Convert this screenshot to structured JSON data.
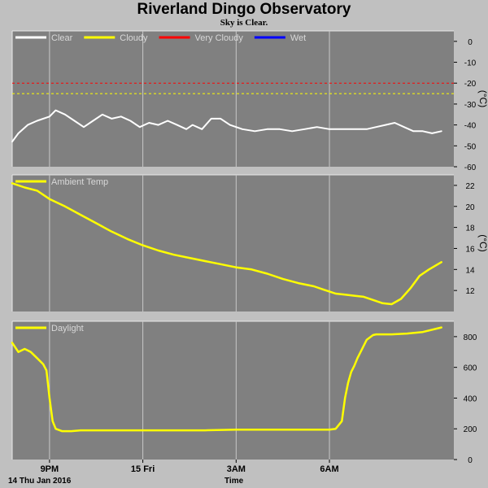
{
  "header": {
    "title": "Riverland Dingo Observatory",
    "subtitle": "Sky is Clear."
  },
  "footer": {
    "date": "14 Thu Jan 2016",
    "time_label": "Time"
  },
  "colors": {
    "background": "#c0c0c0",
    "plot_bg": "#808080",
    "grid": "#c8c8c8",
    "clear": "#ffffff",
    "cloudy": "#ffff00",
    "very_cloudy": "#ff0000",
    "wet": "#0000ff",
    "ambient": "#ffff00",
    "daylight": "#ffff00"
  },
  "chart_data": [
    {
      "type": "line",
      "name": "sky-temperature",
      "legend": [
        {
          "label": "Clear",
          "color": "#ffffff"
        },
        {
          "label": "Cloudy",
          "color": "#ffff00"
        },
        {
          "label": "Very Cloudy",
          "color": "#ff0000"
        },
        {
          "label": "Wet",
          "color": "#0000ff"
        }
      ],
      "ylim": [
        -60,
        5
      ],
      "yticks": [
        0,
        -10,
        -20,
        -30,
        -40,
        -50,
        -60
      ],
      "unit": "(°C)",
      "thresholds": [
        {
          "value": -20,
          "color": "#ff0000"
        },
        {
          "value": -25,
          "color": "#ffff00"
        }
      ],
      "series": [
        {
          "color": "#ffffff",
          "x": [
            19.8,
            20.0,
            20.3,
            20.6,
            21.0,
            21.2,
            21.5,
            21.8,
            22.1,
            22.4,
            22.7,
            23.0,
            23.3,
            23.6,
            23.9,
            24.2,
            24.5,
            24.8,
            25.1,
            25.4,
            25.6,
            25.9,
            26.2,
            26.5,
            26.8,
            27.2,
            27.6,
            28.0,
            28.4,
            28.8,
            29.2,
            29.6,
            30.0,
            30.3,
            30.6,
            30.9,
            31.2,
            31.5,
            31.8,
            32.1,
            32.4,
            32.7,
            33.0,
            33.3,
            33.6
          ],
          "y": [
            -48,
            -44,
            -40,
            -38,
            -36,
            -33,
            -35,
            -38,
            -41,
            -38,
            -35,
            -37,
            -36,
            -38,
            -41,
            -39,
            -40,
            -38,
            -40,
            -42,
            -40,
            -42,
            -37,
            -37,
            -40,
            -42,
            -43,
            -42,
            -42,
            -43,
            -42,
            -41,
            -42,
            -42,
            -42,
            -42,
            -42,
            -41,
            -40,
            -39,
            -41,
            -43,
            -43,
            -44,
            -43
          ]
        }
      ]
    },
    {
      "type": "line",
      "name": "ambient-temperature",
      "legend": [
        {
          "label": "Ambient Temp",
          "color": "#ffff00"
        }
      ],
      "ylim": [
        10,
        23
      ],
      "yticks": [
        22,
        20,
        18,
        16,
        14,
        12
      ],
      "unit": "(°C)",
      "series": [
        {
          "color": "#ffff00",
          "x": [
            19.8,
            20.2,
            20.6,
            21.0,
            21.5,
            22.0,
            22.5,
            23.0,
            23.5,
            24.0,
            24.5,
            25.0,
            25.5,
            26.0,
            26.5,
            27.0,
            27.5,
            28.0,
            28.5,
            29.0,
            29.5,
            29.8,
            30.0,
            30.2,
            30.5,
            30.8,
            31.1,
            31.4,
            31.7,
            32.0,
            32.3,
            32.6,
            32.9,
            33.2,
            33.6
          ],
          "y": [
            22.2,
            21.8,
            21.5,
            20.7,
            20.0,
            19.2,
            18.4,
            17.6,
            16.9,
            16.3,
            15.8,
            15.4,
            15.1,
            14.8,
            14.5,
            14.2,
            14.0,
            13.6,
            13.1,
            12.7,
            12.4,
            12.1,
            11.9,
            11.7,
            11.6,
            11.5,
            11.4,
            11.1,
            10.8,
            10.7,
            11.2,
            12.2,
            13.4,
            14.0,
            14.7
          ]
        }
      ]
    },
    {
      "type": "line",
      "name": "daylight",
      "legend": [
        {
          "label": "Daylight",
          "color": "#ffff00"
        }
      ],
      "ylim": [
        0,
        900
      ],
      "yticks": [
        800,
        600,
        400,
        200,
        0
      ],
      "unit": "",
      "series": [
        {
          "color": "#ffff00",
          "x": [
            19.8,
            20.0,
            20.2,
            20.4,
            20.6,
            20.8,
            20.9,
            21.0,
            21.1,
            21.2,
            21.4,
            21.7,
            22.0,
            23.0,
            24.0,
            25.0,
            26.0,
            27.0,
            28.0,
            29.0,
            29.5,
            30.0,
            30.2,
            30.4,
            30.5,
            30.6,
            30.7,
            30.8,
            30.9,
            31.0,
            31.2,
            31.4,
            31.5,
            31.7,
            32.0,
            32.5,
            33.0,
            33.6
          ],
          "y": [
            760,
            700,
            720,
            700,
            660,
            620,
            580,
            400,
            250,
            200,
            185,
            185,
            190,
            190,
            190,
            190,
            190,
            195,
            195,
            195,
            195,
            195,
            200,
            250,
            400,
            500,
            570,
            610,
            660,
            700,
            780,
            810,
            815,
            815,
            815,
            820,
            830,
            860
          ]
        }
      ]
    }
  ],
  "xaxis": {
    "range": [
      19.8,
      34.0
    ],
    "ticks": [
      {
        "value": 21,
        "label": "9PM"
      },
      {
        "value": 24,
        "label": "15 Fri"
      },
      {
        "value": 27,
        "label": "3AM"
      },
      {
        "value": 30,
        "label": "6AM"
      }
    ]
  }
}
